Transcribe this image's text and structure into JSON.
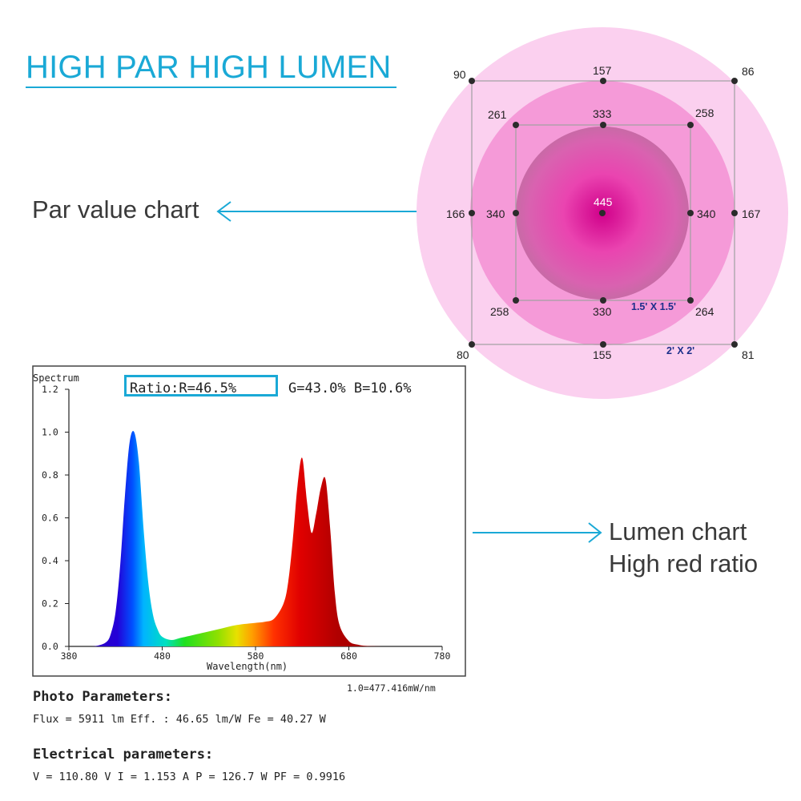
{
  "headline": "HIGH PAR HIGH LUMEN",
  "par_label": "Par value chart",
  "lumen_label": [
    "Lumen chart",
    "High red ratio"
  ],
  "colors": {
    "accent": "#1aa9d6",
    "blue_peak": "#0a1fb0",
    "red_peak": "#d80000",
    "pink": "#e878c8"
  },
  "par_chart": {
    "center_value": "445",
    "inner_square_label": "1.5' X 1.5'",
    "outer_square_label": "2' X 2'",
    "inner_points": {
      "tl": "261",
      "t": "333",
      "tr": "258",
      "l": "340",
      "r": "340",
      "bl": "258",
      "b": "330",
      "br": "264"
    },
    "outer_points": {
      "tl": "90",
      "t": "157",
      "tr": "86",
      "l": "166",
      "r": "167",
      "bl": "80",
      "b": "155",
      "br": "81"
    }
  },
  "chart_data": {
    "type": "area",
    "title": "Spectrum",
    "xlabel": "Wavelength(nm)",
    "ylabel": "",
    "xlim": [
      380,
      780
    ],
    "ylim": [
      0,
      1.2
    ],
    "xticks": [
      "380",
      "480",
      "580",
      "680",
      "780"
    ],
    "yticks": [
      "0.0",
      "0.2",
      "0.4",
      "0.6",
      "0.8",
      "1.0",
      "1.2"
    ],
    "ratio_label": "Ratio:R=46.5%",
    "ratio_rest": "G=43.0% B=10.6%",
    "scale_note": "1.0=477.416mW/nm",
    "x": [
      380,
      400,
      410,
      420,
      425,
      430,
      435,
      440,
      445,
      450,
      455,
      460,
      465,
      470,
      475,
      480,
      490,
      500,
      520,
      540,
      560,
      580,
      590,
      600,
      610,
      615,
      620,
      625,
      630,
      635,
      640,
      645,
      650,
      655,
      660,
      665,
      670,
      680,
      690,
      700,
      720,
      740,
      760,
      780
    ],
    "values": [
      0,
      0,
      0.003,
      0.02,
      0.06,
      0.16,
      0.38,
      0.7,
      0.95,
      1.0,
      0.86,
      0.55,
      0.3,
      0.15,
      0.08,
      0.045,
      0.03,
      0.04,
      0.06,
      0.08,
      0.1,
      0.11,
      0.115,
      0.13,
      0.2,
      0.3,
      0.5,
      0.75,
      0.88,
      0.68,
      0.53,
      0.62,
      0.74,
      0.78,
      0.55,
      0.25,
      0.1,
      0.025,
      0.008,
      0.002,
      0,
      0,
      0,
      0
    ]
  },
  "photo_parameters": {
    "heading": "Photo Parameters:",
    "line": "Flux  = 5911 lm   Eff. : 46.65 lm/W  Fe  = 40.27 W"
  },
  "electrical_parameters": {
    "heading": "Electrical parameters:",
    "line": "V = 110.80 V     I = 1.153 A     P = 126.7 W PF = 0.9916"
  }
}
